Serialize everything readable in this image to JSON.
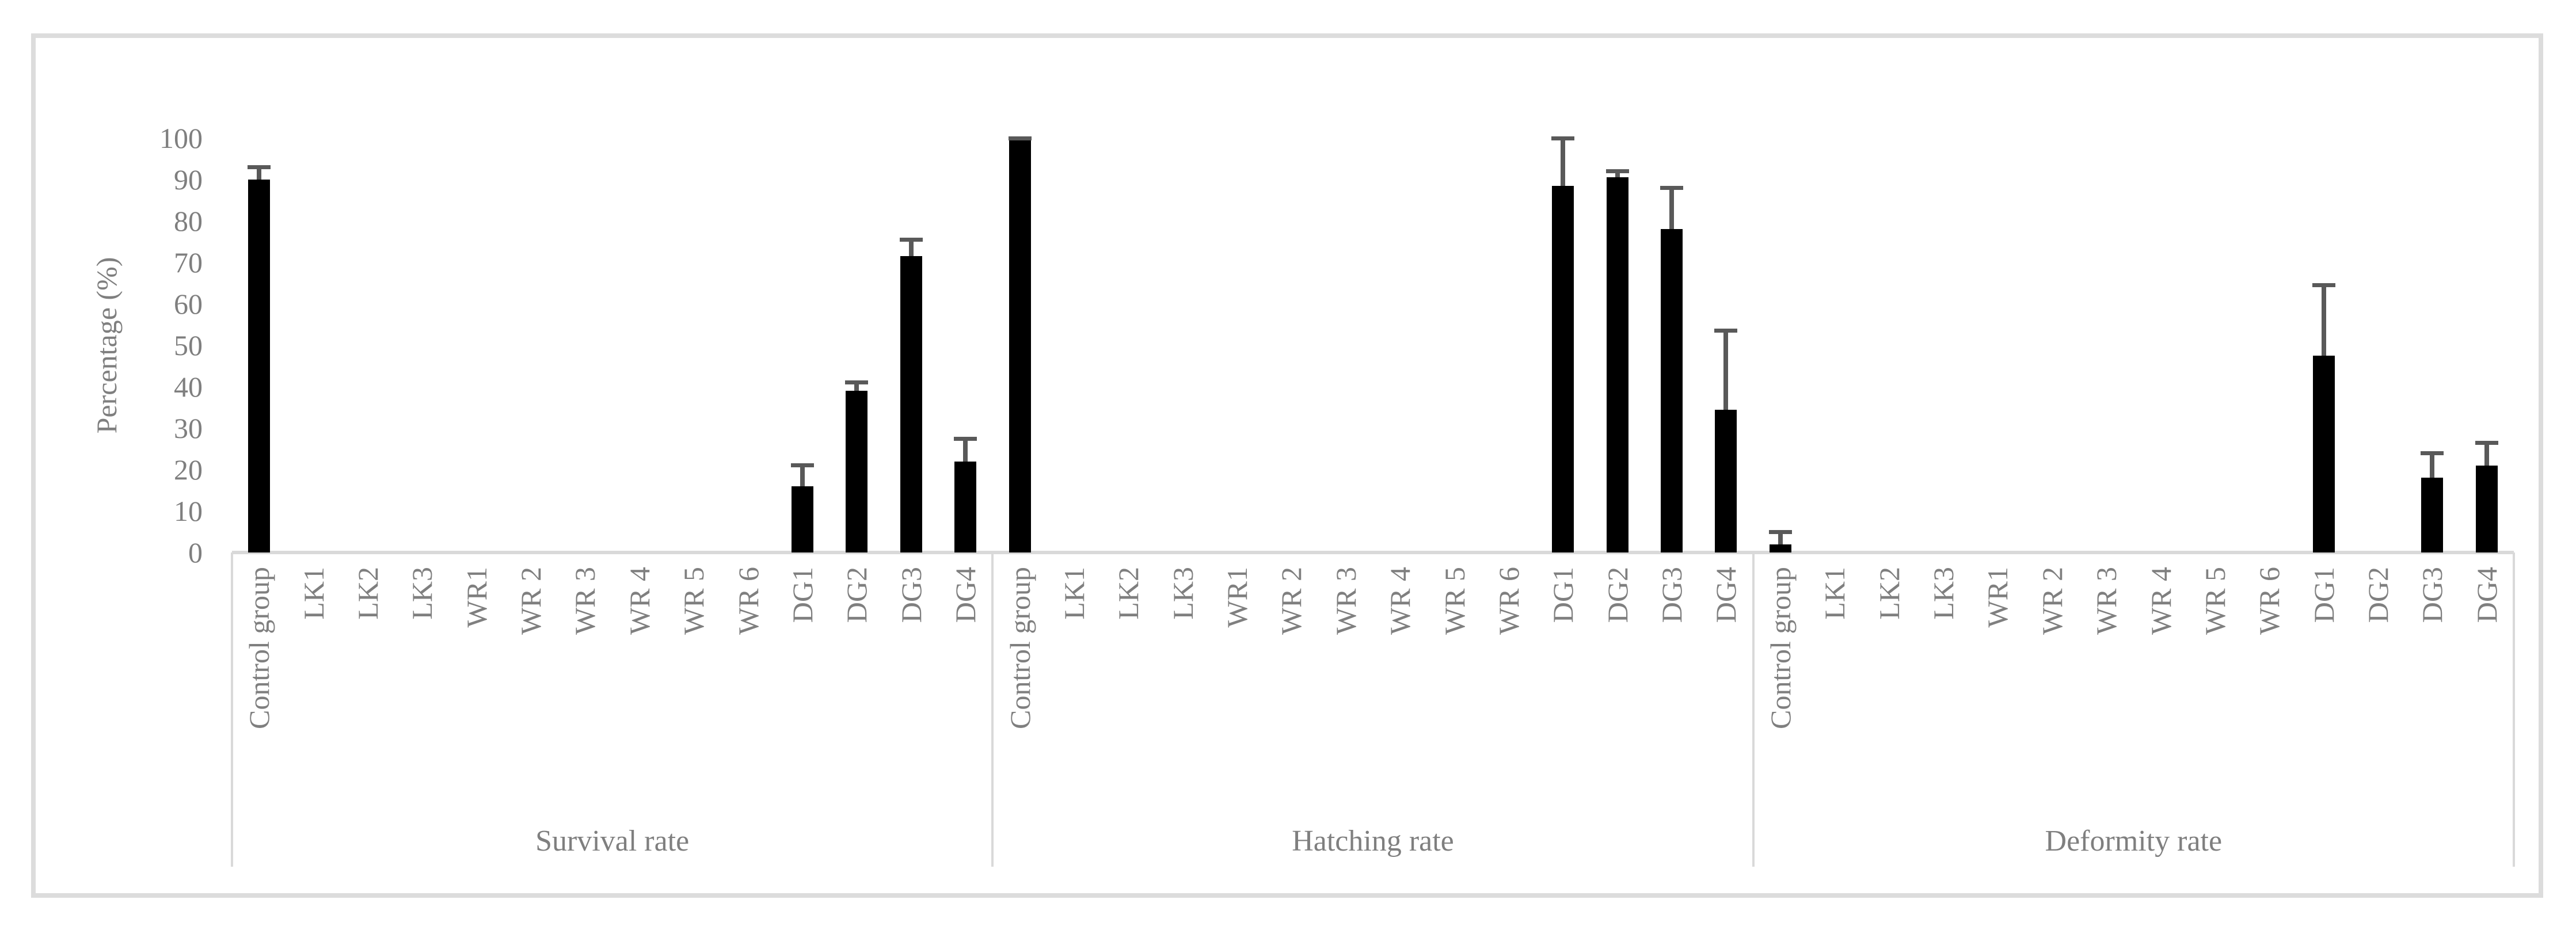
{
  "chart_data": {
    "type": "bar",
    "title": "",
    "ylabel": "Percentage (%)",
    "ylim": [
      0,
      100
    ],
    "yticks": [
      0,
      10,
      20,
      30,
      40,
      50,
      60,
      70,
      80,
      90,
      100
    ],
    "grid": false,
    "legend": false,
    "categories": [
      "Control group",
      "LK1",
      "LK2",
      "LK3",
      "WR1",
      "WR 2",
      "WR 3",
      "WR 4",
      "WR 5",
      "WR 6",
      "DG1",
      "DG2",
      "DG3",
      "DG4"
    ],
    "groups": [
      {
        "label": "Survival rate",
        "values": [
          90,
          0,
          0,
          0,
          0,
          0,
          0,
          0,
          0,
          0,
          16,
          39,
          71.5,
          22
        ],
        "errors": [
          3,
          0,
          0,
          0,
          0,
          0,
          0,
          0,
          0,
          0,
          5,
          2,
          4,
          5.5
        ]
      },
      {
        "label": "Hatching rate",
        "values": [
          99.5,
          0,
          0,
          0,
          0,
          0,
          0,
          0,
          0,
          0,
          88.5,
          90.5,
          78,
          34.5
        ],
        "errors": [
          0.5,
          0,
          0,
          0,
          0,
          0,
          0,
          0,
          0,
          0,
          11.5,
          1.5,
          10,
          19
        ]
      },
      {
        "label": "Deformity rate",
        "values": [
          2,
          0,
          0,
          0,
          0,
          0,
          0,
          0,
          0,
          0,
          47.5,
          0,
          18,
          21
        ],
        "errors": [
          3,
          0,
          0,
          0,
          0,
          0,
          0,
          0,
          0,
          0,
          17,
          0,
          6,
          5.5
        ]
      }
    ],
    "colors": {
      "bar": "#000000",
      "error_bar": "#595959",
      "text": "#7f7f7f",
      "axis_lines": "#d9d9d9",
      "figure_border": "#dcdcdc",
      "background": "#ffffff"
    }
  }
}
